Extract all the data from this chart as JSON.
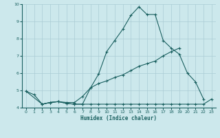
{
  "xlabel": "Humidex (Indice chaleur)",
  "bg_color": "#cce8ec",
  "grid_color": "#aaccd4",
  "line_color": "#1a6060",
  "xlim": [
    -0.5,
    23.5
  ],
  "ylim": [
    4,
    10
  ],
  "xticks": [
    0,
    1,
    2,
    3,
    4,
    5,
    6,
    7,
    8,
    9,
    10,
    11,
    12,
    13,
    14,
    15,
    16,
    17,
    18,
    19,
    20,
    21,
    22,
    23
  ],
  "yticks": [
    4,
    5,
    6,
    7,
    8,
    9,
    10
  ],
  "curve1_x": [
    0,
    1,
    2,
    3,
    4,
    5,
    6,
    7,
    8,
    9,
    10,
    11,
    12,
    13,
    14,
    15,
    16,
    17,
    18,
    19,
    20,
    21,
    22
  ],
  "curve1_y": [
    4.95,
    4.75,
    4.2,
    4.3,
    4.35,
    4.25,
    4.2,
    4.2,
    5.15,
    5.95,
    7.25,
    7.9,
    8.55,
    9.35,
    9.85,
    9.4,
    9.4,
    7.9,
    7.45,
    7.1,
    6.0,
    5.5,
    4.5
  ],
  "curve2_x": [
    0,
    2,
    3,
    4,
    5,
    6,
    7,
    8,
    9,
    10,
    11,
    12,
    13,
    14,
    15,
    16,
    17,
    18,
    19
  ],
  "curve2_y": [
    4.95,
    4.2,
    4.3,
    4.35,
    4.3,
    4.3,
    4.65,
    5.15,
    5.4,
    5.55,
    5.75,
    5.9,
    6.15,
    6.4,
    6.55,
    6.7,
    7.0,
    7.25,
    7.45
  ],
  "curve3_x": [
    2,
    3,
    4,
    5,
    6,
    7,
    8,
    9,
    10,
    11,
    12,
    13,
    14,
    15,
    16,
    17,
    18,
    19,
    20,
    21,
    22,
    23
  ],
  "curve3_y": [
    4.2,
    4.3,
    4.35,
    4.25,
    4.2,
    4.2,
    4.2,
    4.2,
    4.2,
    4.2,
    4.2,
    4.2,
    4.2,
    4.2,
    4.2,
    4.2,
    4.2,
    4.2,
    4.2,
    4.2,
    4.2,
    4.5
  ]
}
